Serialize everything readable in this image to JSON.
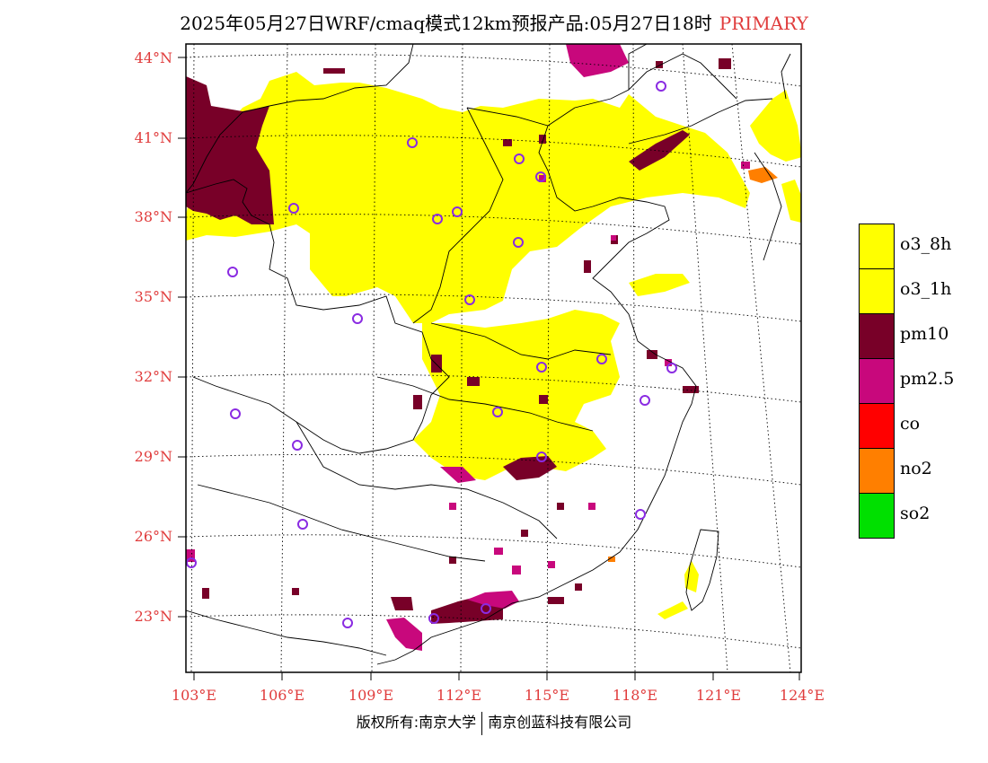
{
  "title": {
    "main": "2025年05月27日WRF/cmaq模式12km预报产品:05月27日18时",
    "tag": "PRIMARY"
  },
  "latitude_labels": [
    "44°N",
    "41°N",
    "38°N",
    "35°N",
    "32°N",
    "29°N",
    "26°N",
    "23°N"
  ],
  "longitude_labels": [
    "103°E",
    "106°E",
    "109°E",
    "112°E",
    "115°E",
    "118°E",
    "121°E",
    "124°E"
  ],
  "legend": [
    {
      "label": "o3_8h",
      "color": "#ffff00"
    },
    {
      "label": "o3_1h",
      "color": "#ffff00"
    },
    {
      "label": "pm10",
      "color": "#780028"
    },
    {
      "label": "pm2.5",
      "color": "#c8087c"
    },
    {
      "label": "co",
      "color": "#ff0000"
    },
    {
      "label": "no2",
      "color": "#ff7f00"
    },
    {
      "label": "so2",
      "color": "#00e000"
    }
  ],
  "colors": {
    "o3": "#ffff00",
    "pm10": "#780028",
    "pm25": "#c8087c",
    "no2": "#ff7f00",
    "axis_label": "#e03c3c",
    "station_marker": "#8a2be2"
  },
  "copyright": {
    "left": "版权所有:南京大学",
    "right": "南京创蓝科技有限公司"
  }
}
